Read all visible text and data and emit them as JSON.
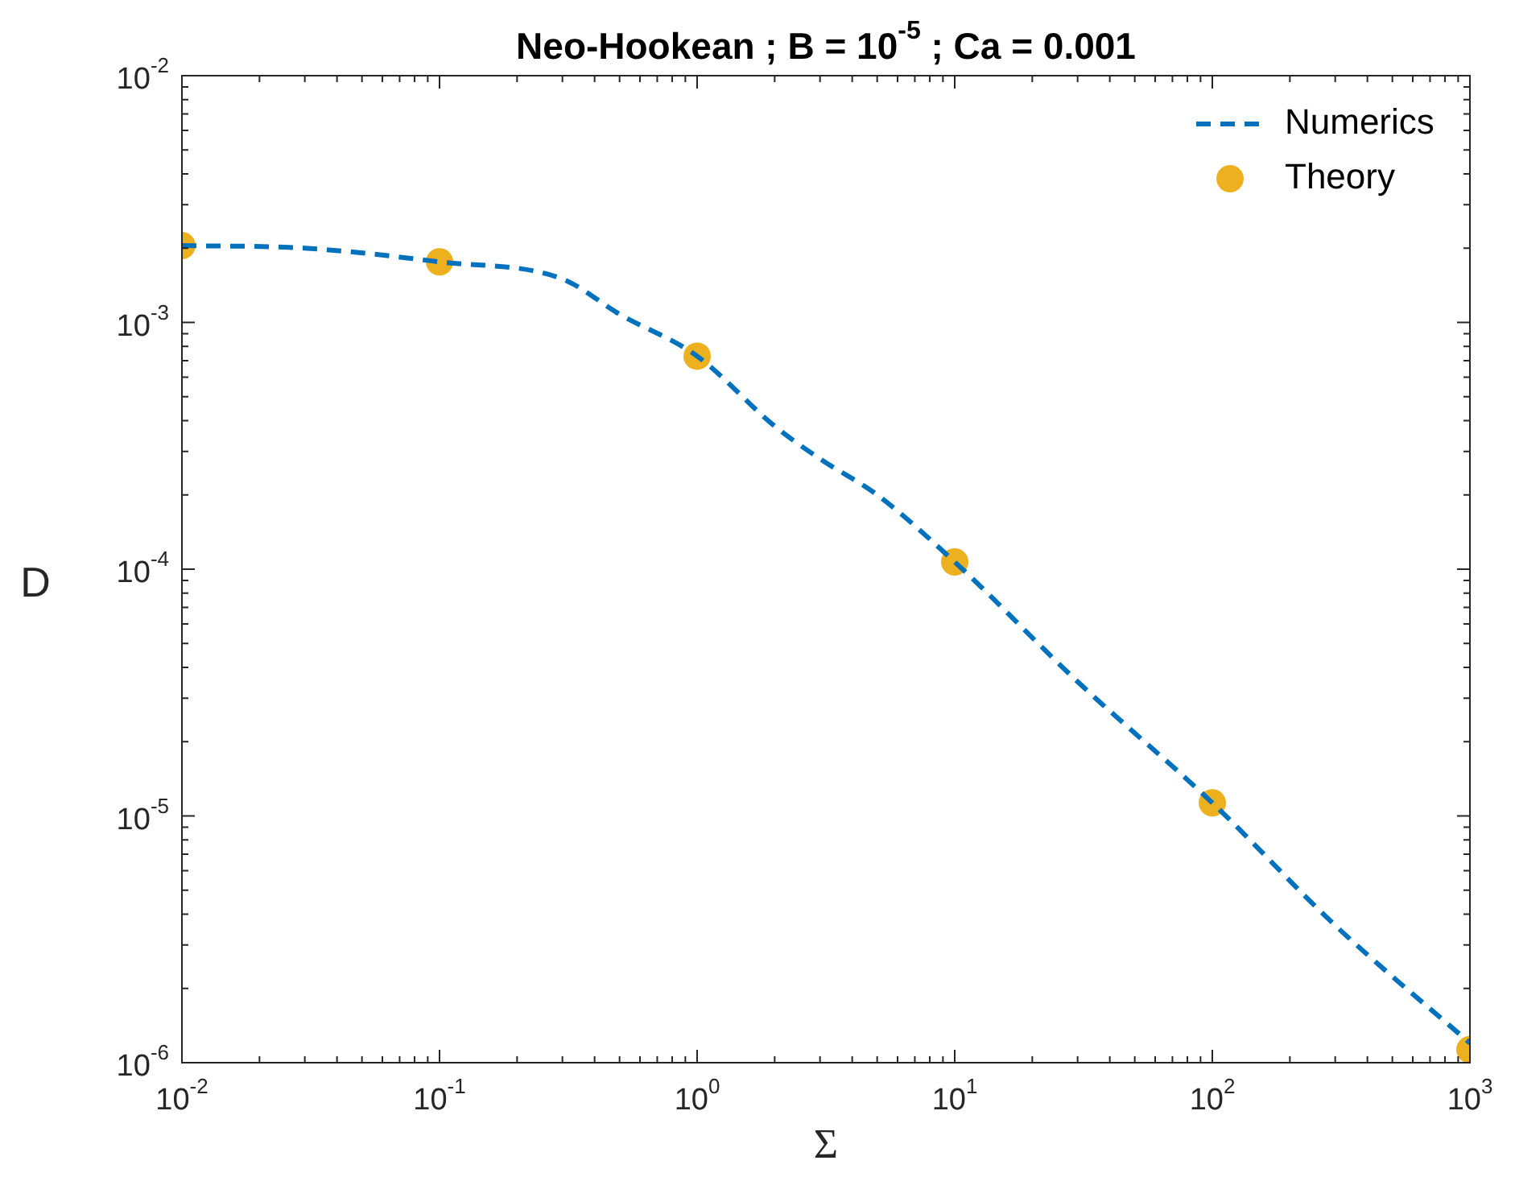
{
  "chart_data": {
    "type": "line",
    "title": "Neo-Hookean ; B = 10$^{-5}$ ; Ca = 0.001",
    "xlabel": "Σ",
    "ylabel": "D",
    "log": "xy",
    "legend": "top right",
    "xlim": [
      0.01,
      1000
    ],
    "ylim": [
      1e-06,
      0.01
    ],
    "xticks": [
      {
        "value": 0.01,
        "label": "10$^{-2}$"
      },
      {
        "value": 0.02,
        "label": null
      },
      {
        "value": 0.03,
        "label": null
      },
      {
        "value": 0.04,
        "label": null
      },
      {
        "value": 0.05,
        "label": null
      },
      {
        "value": 0.06,
        "label": null
      },
      {
        "value": 0.07,
        "label": null
      },
      {
        "value": 0.08,
        "label": null
      },
      {
        "value": 0.09,
        "label": null
      },
      {
        "value": 0.1,
        "label": "10$^{-1}$"
      },
      {
        "value": 0.2,
        "label": null
      },
      {
        "value": 0.3,
        "label": null
      },
      {
        "value": 0.4,
        "label": null
      },
      {
        "value": 0.5,
        "label": null
      },
      {
        "value": 0.6,
        "label": null
      },
      {
        "value": 0.7,
        "label": null
      },
      {
        "value": 0.8,
        "label": null
      },
      {
        "value": 0.9,
        "label": null
      },
      {
        "value": 1,
        "label": "10$^{0}$"
      },
      {
        "value": 2,
        "label": null
      },
      {
        "value": 3,
        "label": null
      },
      {
        "value": 4,
        "label": null
      },
      {
        "value": 5,
        "label": null
      },
      {
        "value": 6,
        "label": null
      },
      {
        "value": 7,
        "label": null
      },
      {
        "value": 8,
        "label": null
      },
      {
        "value": 9,
        "label": null
      },
      {
        "value": 10,
        "label": "10$^{1}$"
      },
      {
        "value": 20,
        "label": null
      },
      {
        "value": 30,
        "label": null
      },
      {
        "value": 40,
        "label": null
      },
      {
        "value": 50,
        "label": null
      },
      {
        "value": 60,
        "label": null
      },
      {
        "value": 70,
        "label": null
      },
      {
        "value": 80,
        "label": null
      },
      {
        "value": 90,
        "label": null
      },
      {
        "value": 100,
        "label": "10$^{2}$"
      },
      {
        "value": 200,
        "label": null
      },
      {
        "value": 300,
        "label": null
      },
      {
        "value": 400,
        "label": null
      },
      {
        "value": 500,
        "label": null
      },
      {
        "value": 600,
        "label": null
      },
      {
        "value": 700,
        "label": null
      },
      {
        "value": 800,
        "label": null
      },
      {
        "value": 900,
        "label": null
      },
      {
        "value": 1000,
        "label": "10$^{3}$"
      }
    ],
    "yticks": [
      {
        "value": 1e-06,
        "label": "10$^{-6}$"
      },
      {
        "value": 2e-06,
        "label": null
      },
      {
        "value": 3e-06,
        "label": null
      },
      {
        "value": 4e-06,
        "label": null
      },
      {
        "value": 5e-06,
        "label": null
      },
      {
        "value": 6e-06,
        "label": null
      },
      {
        "value": 7e-06,
        "label": null
      },
      {
        "value": 8e-06,
        "label": null
      },
      {
        "value": 9e-06,
        "label": null
      },
      {
        "value": 1e-05,
        "label": "10$^{-5}$"
      },
      {
        "value": 2e-05,
        "label": null
      },
      {
        "value": 3e-05,
        "label": null
      },
      {
        "value": 4e-05,
        "label": null
      },
      {
        "value": 5e-05,
        "label": null
      },
      {
        "value": 6e-05,
        "label": null
      },
      {
        "value": 7e-05,
        "label": null
      },
      {
        "value": 8e-05,
        "label": null
      },
      {
        "value": 9e-05,
        "label": null
      },
      {
        "value": 0.0001,
        "label": "10$^{-4}$"
      },
      {
        "value": 0.0002,
        "label": null
      },
      {
        "value": 0.0003,
        "label": null
      },
      {
        "value": 0.0004,
        "label": null
      },
      {
        "value": 0.0005,
        "label": null
      },
      {
        "value": 0.0006,
        "label": null
      },
      {
        "value": 0.0007,
        "label": null
      },
      {
        "value": 0.0008,
        "label": null
      },
      {
        "value": 0.0009,
        "label": null
      },
      {
        "value": 0.001,
        "label": "10$^{-3}$"
      },
      {
        "value": 0.002,
        "label": null
      },
      {
        "value": 0.003,
        "label": null
      },
      {
        "value": 0.004,
        "label": null
      },
      {
        "value": 0.005,
        "label": null
      },
      {
        "value": 0.006,
        "label": null
      },
      {
        "value": 0.007,
        "label": null
      },
      {
        "value": 0.008,
        "label": null
      },
      {
        "value": 0.009,
        "label": null
      },
      {
        "value": 0.01,
        "label": "10$^{-2}$"
      }
    ],
    "series": [
      {
        "name": "Numerics",
        "type": "line",
        "color": "#0072bd",
        "line_style": "dashed",
        "marker": "none",
        "x": [
          0.01,
          0.03,
          0.1,
          0.3,
          0.5,
          1,
          2,
          3,
          5,
          10,
          30,
          100,
          300,
          1000
        ],
        "values": [
          0.00205,
          0.002,
          0.00176,
          0.0015,
          0.00108,
          0.00073,
          0.00038,
          0.00028,
          0.0002,
          0.000107,
          3.5e-05,
          1.13e-05,
          3.6e-06,
          1.2e-06
        ]
      },
      {
        "name": "Theory",
        "type": "scatter",
        "color": "#edb120",
        "marker": "circle",
        "x": [
          0.01,
          0.1,
          1,
          10,
          100,
          1000
        ],
        "values": [
          0.00205,
          0.00176,
          0.00073,
          0.000107,
          1.13e-05,
          1.13e-06
        ]
      }
    ]
  }
}
